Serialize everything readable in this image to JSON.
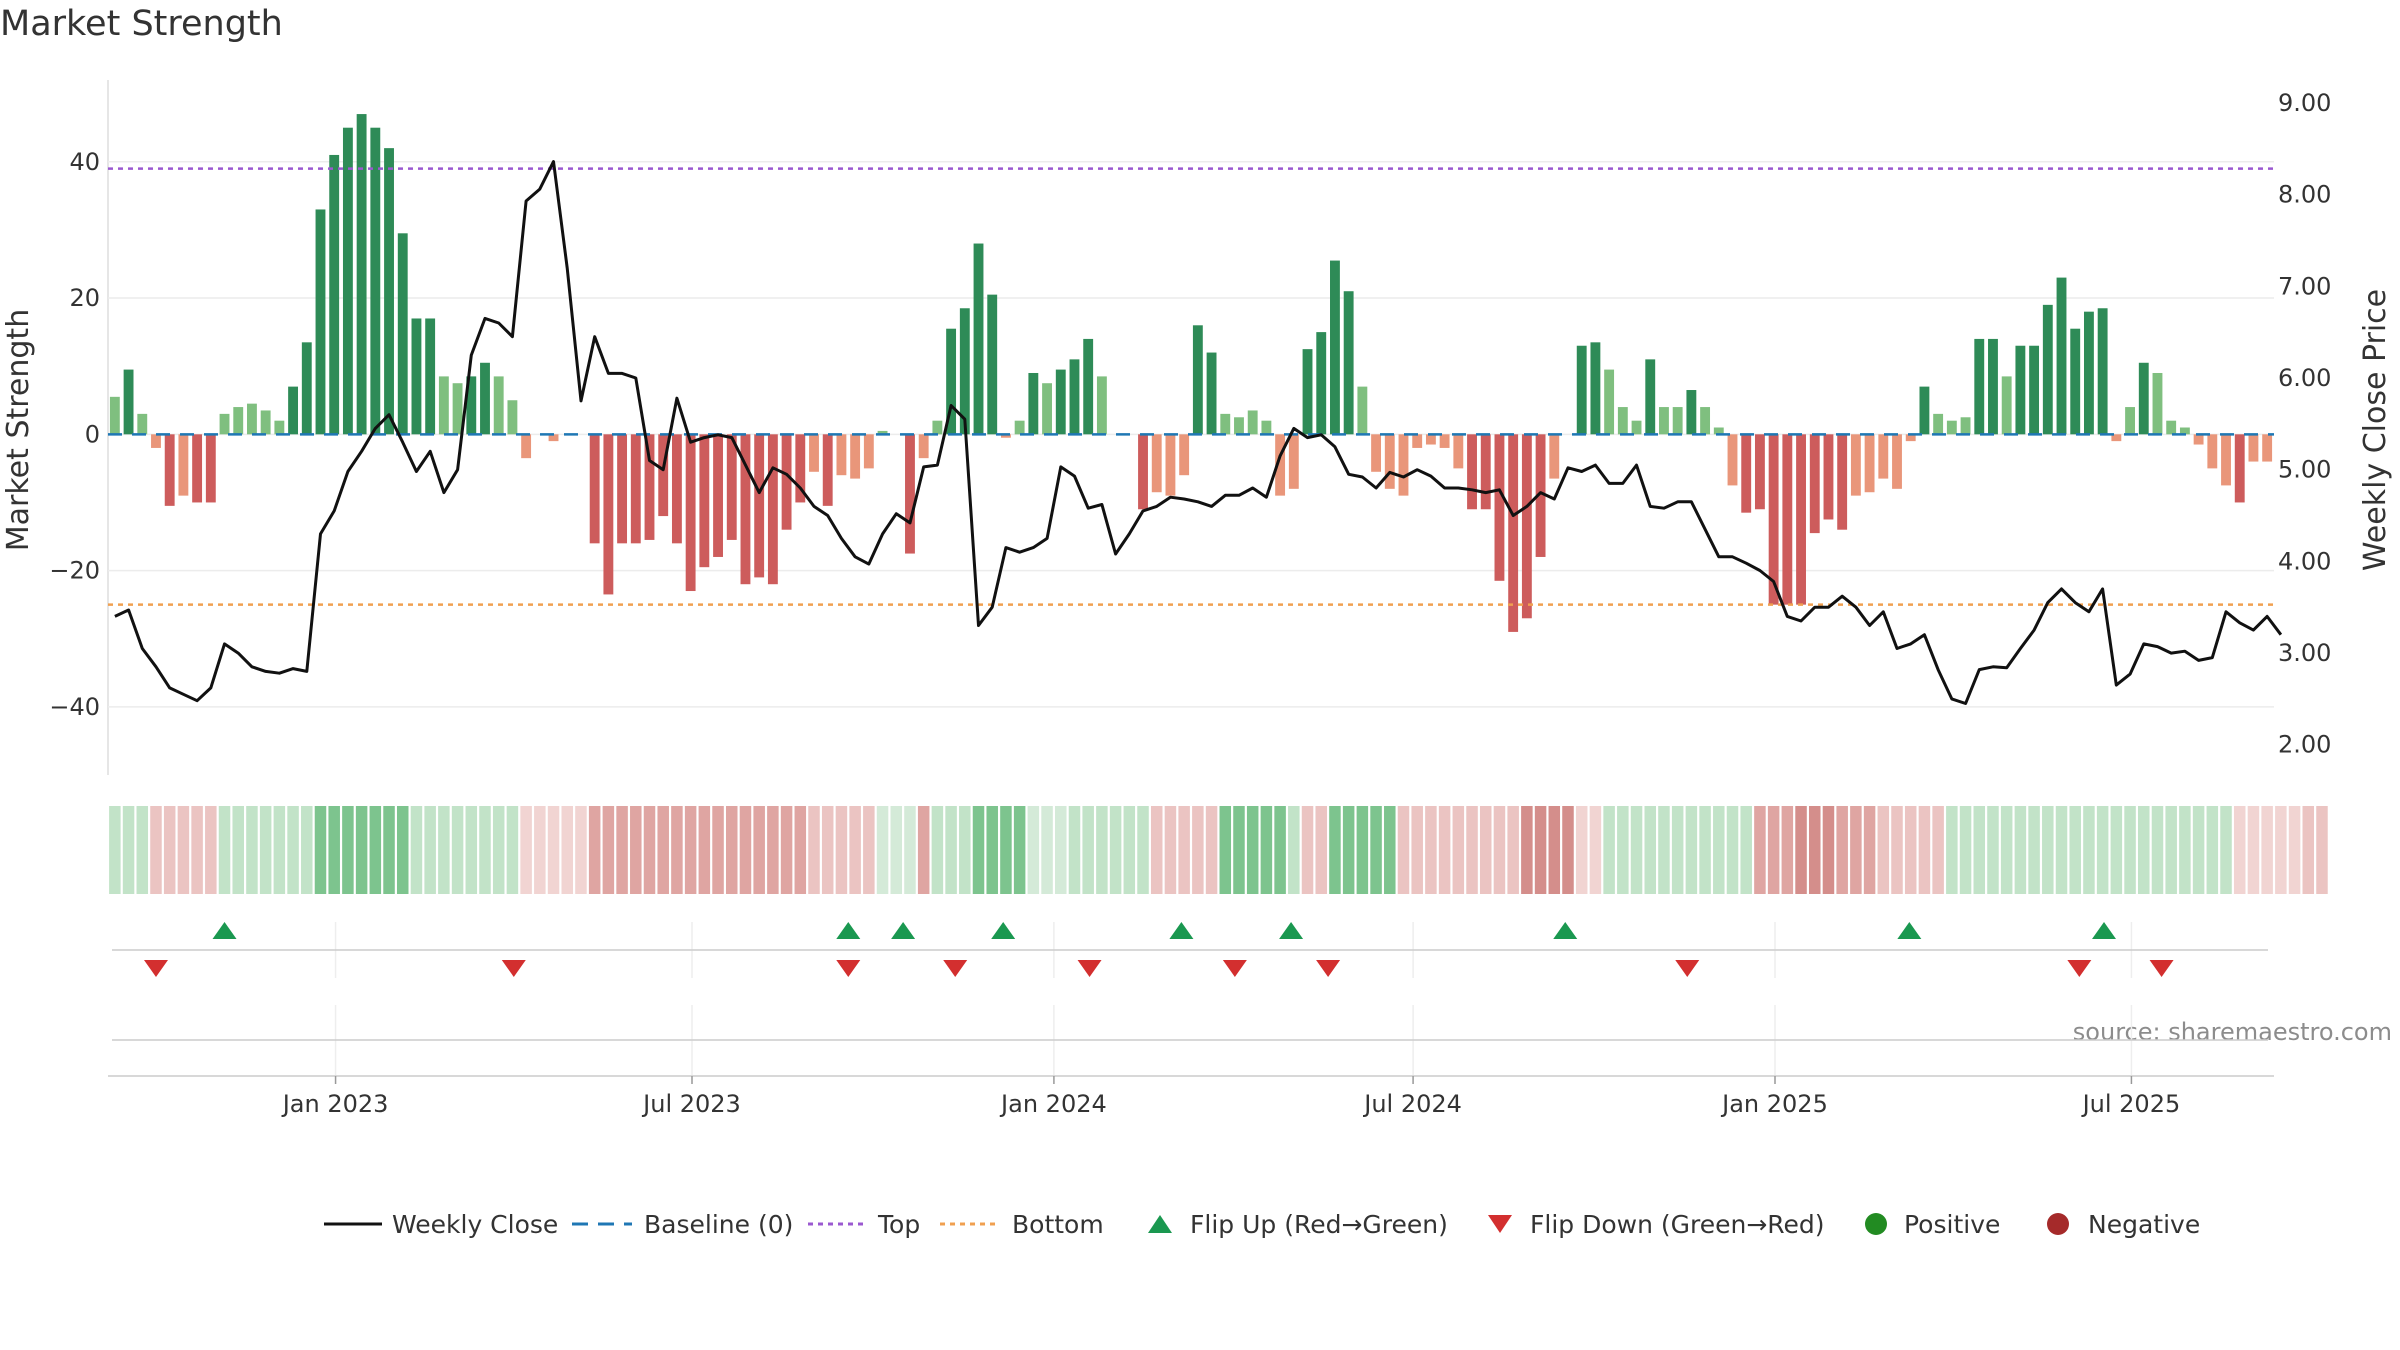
{
  "title": "Market Strength",
  "source": "source: sharemaestro.com",
  "colors": {
    "strong_green": "#2e8b57",
    "light_green": "#7fbf7f",
    "strong_red": "#cd5c5c",
    "light_red": "#e9967a",
    "baseline": "#1f77b4",
    "top": "#9b59d0",
    "bottom": "#f0a050",
    "close": "#111111",
    "flip_up": "#1a9850",
    "flip_down": "#d32f2f",
    "positive": "#228b22",
    "negative": "#a52a2a"
  },
  "chart_data": {
    "type": "bar",
    "xlabel": "",
    "ylabel": "Market Strength",
    "y2label": "Weekly Close Price",
    "ylim": [
      -50,
      52
    ],
    "y2lim": [
      1.67,
      9.25
    ],
    "yticks": [
      "40",
      "20",
      "0",
      "−20",
      "−40"
    ],
    "ytick_values": [
      40,
      20,
      0,
      -20,
      -40
    ],
    "y2ticks": [
      "9.00",
      "8.00",
      "7.00",
      "6.00",
      "5.00",
      "4.00",
      "3.00",
      "2.00"
    ],
    "y2tick_values": [
      9,
      8,
      7,
      6,
      5,
      4,
      3,
      2
    ],
    "xticks": [
      "Jan 2023",
      "Jul 2023",
      "Jan 2024",
      "Jul 2024",
      "Jan 2025",
      "Jul 2025"
    ],
    "xtick_weeks": [
      16.6,
      42.6,
      69,
      95.2,
      121.6,
      147.6
    ],
    "top_level": 39,
    "bottom_level": -25,
    "legend": [
      {
        "label": "Weekly Close",
        "kind": "line"
      },
      {
        "label": "Baseline (0)",
        "kind": "dash"
      },
      {
        "label": "Top",
        "kind": "dot-purple"
      },
      {
        "label": "Bottom",
        "kind": "dot-orange"
      },
      {
        "label": "Flip Up (Red→Green)",
        "kind": "tri-up"
      },
      {
        "label": "Flip Down (Green→Red)",
        "kind": "tri-down"
      },
      {
        "label": "Positive",
        "kind": "circle-green"
      },
      {
        "label": "Negative",
        "kind": "circle-red"
      }
    ],
    "strength": [
      5.5,
      9.5,
      3,
      -2,
      -10.5,
      -9,
      -10,
      -10,
      3,
      4,
      4.5,
      3.5,
      2,
      7,
      13.5,
      33,
      41,
      45,
      47,
      45,
      42,
      29.5,
      17,
      17,
      8.5,
      7.5,
      8.5,
      10.5,
      8.5,
      5,
      -3.5,
      0,
      -1,
      0,
      0,
      -16,
      -23.5,
      -16,
      -16,
      -15.5,
      -12,
      -16,
      -23,
      -19.5,
      -18,
      -15.5,
      -22,
      -21,
      -22,
      -14,
      -10,
      -5.5,
      -10.5,
      -6,
      -6.5,
      -5,
      0.5,
      0,
      -17.5,
      -3.5,
      2,
      15.5,
      18.5,
      28,
      20.5,
      -0.5,
      2,
      9,
      7.5,
      9.5,
      11,
      14,
      8.5,
      0,
      0,
      -11,
      -8.5,
      -9,
      -6,
      16,
      12,
      3,
      2.5,
      3.5,
      2,
      -9,
      -8,
      12.5,
      15,
      25.5,
      21,
      7,
      -5.5,
      -8,
      -9,
      -2,
      -1.5,
      -2,
      -5,
      -11,
      -11,
      -21.5,
      -29,
      -27,
      -18,
      -6.5,
      0,
      13,
      13.5,
      9.5,
      4,
      2,
      11,
      4,
      4,
      6.5,
      4,
      1,
      -7.5,
      -11.5,
      -11,
      -25,
      -25,
      -25,
      -14.5,
      -12.5,
      -14,
      -9,
      -8.5,
      -6.5,
      -8,
      -1,
      7,
      3,
      2,
      2.5,
      14,
      14,
      8.5,
      13,
      13,
      19,
      23,
      15.5,
      18,
      18.5,
      -1,
      4,
      10.5,
      9,
      2,
      1,
      -1.5,
      -5,
      -7.5,
      -10,
      -4,
      -4
    ],
    "close": [
      3.4,
      3.47,
      3.05,
      2.85,
      2.62,
      2.55,
      2.48,
      2.62,
      3.1,
      3,
      2.85,
      2.8,
      2.78,
      2.83,
      2.8,
      4.3,
      4.55,
      4.98,
      5.2,
      5.45,
      5.6,
      5.3,
      4.98,
      5.2,
      4.75,
      5,
      6.25,
      6.65,
      6.6,
      6.45,
      7.93,
      8.06,
      8.36,
      7.2,
      5.75,
      6.45,
      6.05,
      6.05,
      6,
      5.1,
      5,
      5.78,
      5.3,
      5.35,
      5.38,
      5.35,
      5.05,
      4.75,
      5.02,
      4.95,
      4.8,
      4.6,
      4.5,
      4.25,
      4.05,
      3.97,
      4.3,
      4.52,
      4.42,
      5.03,
      5.05,
      5.7,
      5.55,
      3.3,
      3.5,
      4.15,
      4.1,
      4.15,
      4.25,
      5.03,
      4.93,
      4.58,
      4.62,
      4.08,
      4.3,
      4.55,
      4.6,
      4.7,
      4.68,
      4.65,
      4.6,
      4.72,
      4.72,
      4.8,
      4.7,
      5.15,
      5.45,
      5.35,
      5.38,
      5.25,
      4.95,
      4.92,
      4.8,
      4.97,
      4.92,
      5,
      4.93,
      4.8,
      4.8,
      4.78,
      4.75,
      4.78,
      4.5,
      4.6,
      4.75,
      4.68,
      5.02,
      4.98,
      5.05,
      4.85,
      4.85,
      5.05,
      4.6,
      4.58,
      4.65,
      4.65,
      4.35,
      4.05,
      4.05,
      3.98,
      3.9,
      3.78,
      3.4,
      3.35,
      3.5,
      3.5,
      3.62,
      3.5,
      3.3,
      3.45,
      3.05,
      3.1,
      3.2,
      2.82,
      2.5,
      2.45,
      2.82,
      2.85,
      2.84,
      3.05,
      3.25,
      3.55,
      3.7,
      3.55,
      3.45,
      3.7,
      2.65,
      2.77,
      3.1,
      3.07,
      3,
      3.02,
      2.92,
      2.95,
      3.45,
      3.33,
      3.25,
      3.4,
      3.2
    ],
    "regime_strip": [
      2,
      2,
      2,
      -2,
      -2,
      -2,
      -2,
      -2,
      2,
      2,
      2,
      2,
      2,
      2,
      2,
      3,
      3,
      3,
      3,
      3,
      3,
      3,
      2,
      2,
      2,
      2,
      2,
      2,
      2,
      2,
      -1,
      -1,
      -1,
      -1,
      -1,
      -3,
      -3,
      -3,
      -3,
      -3,
      -3,
      -3,
      -3,
      -3,
      -3,
      -3,
      -3,
      -3,
      -3,
      -3,
      -3,
      -2,
      -2,
      -2,
      -2,
      -2,
      1,
      1,
      1,
      -3,
      2,
      2,
      2,
      3,
      3,
      3,
      3,
      1,
      1,
      1,
      2,
      2,
      2,
      2,
      2,
      2,
      -2,
      -2,
      -2,
      -2,
      -2,
      3,
      3,
      3,
      3,
      3,
      2,
      -2,
      -2,
      3,
      3,
      3,
      3,
      3,
      -2,
      -2,
      -2,
      -2,
      -2,
      -2,
      -2,
      -2,
      -2,
      -4,
      -4,
      -4,
      -4,
      -1,
      -1,
      2,
      2,
      2,
      2,
      2,
      2,
      2,
      2,
      2,
      2,
      2,
      -3,
      -3,
      -3,
      -4,
      -4,
      -4,
      -3,
      -3,
      -3,
      -2,
      -2,
      -2,
      -2,
      -2,
      2,
      2,
      2,
      2,
      2,
      2,
      2,
      2,
      2,
      2,
      2,
      2,
      2,
      2,
      2,
      2,
      2,
      2,
      2,
      2,
      2,
      -1,
      -1,
      -1,
      -1,
      -1,
      -2,
      -2
    ],
    "flips_up": [
      8.5,
      54,
      58,
      65.3,
      78.3,
      86.3,
      106.3,
      131.4,
      145.6
    ],
    "flips_down": [
      3.5,
      29.6,
      54,
      61.8,
      71.6,
      82.2,
      89,
      115.2,
      143.8,
      149.8
    ]
  }
}
